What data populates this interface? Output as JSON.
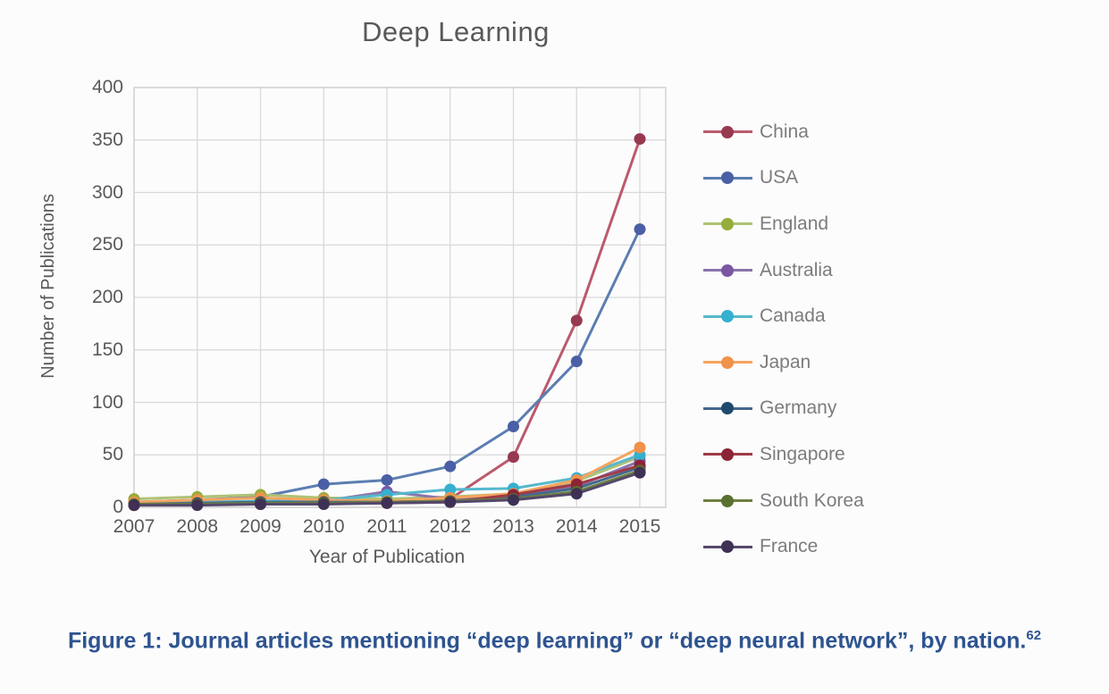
{
  "page": {
    "background": "#fcfcfc"
  },
  "chart": {
    "title": "Deep Learning",
    "x_axis_label": "Year of Publication",
    "y_axis_label": "Number of Publications"
  },
  "caption": {
    "text": "Figure 1: Journal articles mentioning “deep learning” or “deep neural network”, by nation.",
    "superscript": "62"
  },
  "colors": {
    "grid": "#d9d9d9",
    "plot_border": "#d0d0d0",
    "axis_text": "#595959",
    "legend_text": "#7c7c7c",
    "title_text": "#595959",
    "caption_text": "#2e5490"
  },
  "chart_data": {
    "type": "line",
    "title": "Deep Learning",
    "xlabel": "Year of Publication",
    "ylabel": "Number of Publications",
    "x": [
      2007,
      2008,
      2009,
      2010,
      2011,
      2012,
      2013,
      2014,
      2015
    ],
    "ylim": [
      0,
      400
    ],
    "ytick_step": 50,
    "grid": true,
    "legend_position": "right",
    "series": [
      {
        "name": "China",
        "line_color": "#bb5a6c",
        "marker_color": "#97394f",
        "values": [
          2,
          3,
          4,
          4,
          4,
          8,
          48,
          178,
          351
        ]
      },
      {
        "name": "USA",
        "line_color": "#5c7db1",
        "marker_color": "#4a5fa5",
        "values": [
          5,
          7,
          10,
          22,
          26,
          39,
          77,
          139,
          265
        ]
      },
      {
        "name": "England",
        "line_color": "#aec277",
        "marker_color": "#96ad3c",
        "values": [
          8,
          10,
          12,
          9,
          8,
          10,
          13,
          25,
          48
        ]
      },
      {
        "name": "Australia",
        "line_color": "#8b74ab",
        "marker_color": "#7a57a3",
        "values": [
          3,
          4,
          5,
          6,
          15,
          8,
          10,
          20,
          44
        ]
      },
      {
        "name": "Canada",
        "line_color": "#56b8cc",
        "marker_color": "#35b0d0",
        "values": [
          4,
          5,
          6,
          7,
          12,
          17,
          18,
          28,
          50
        ]
      },
      {
        "name": "Japan",
        "line_color": "#f5a45e",
        "marker_color": "#f0924a",
        "values": [
          5,
          7,
          9,
          7,
          6,
          9,
          13,
          26,
          57
        ]
      },
      {
        "name": "Germany",
        "line_color": "#46688c",
        "marker_color": "#1f4a6e",
        "values": [
          3,
          4,
          5,
          5,
          5,
          6,
          10,
          18,
          38
        ]
      },
      {
        "name": "Singapore",
        "line_color": "#a03a48",
        "marker_color": "#8c2436",
        "values": [
          2,
          3,
          3,
          4,
          4,
          5,
          12,
          22,
          40
        ]
      },
      {
        "name": "South Korea",
        "line_color": "#6d8040",
        "marker_color": "#5a7030",
        "values": [
          3,
          3,
          4,
          4,
          5,
          6,
          8,
          15,
          35
        ]
      },
      {
        "name": "France",
        "line_color": "#55486b",
        "marker_color": "#3f3155",
        "values": [
          2,
          2,
          3,
          3,
          4,
          5,
          7,
          13,
          33
        ]
      }
    ]
  }
}
